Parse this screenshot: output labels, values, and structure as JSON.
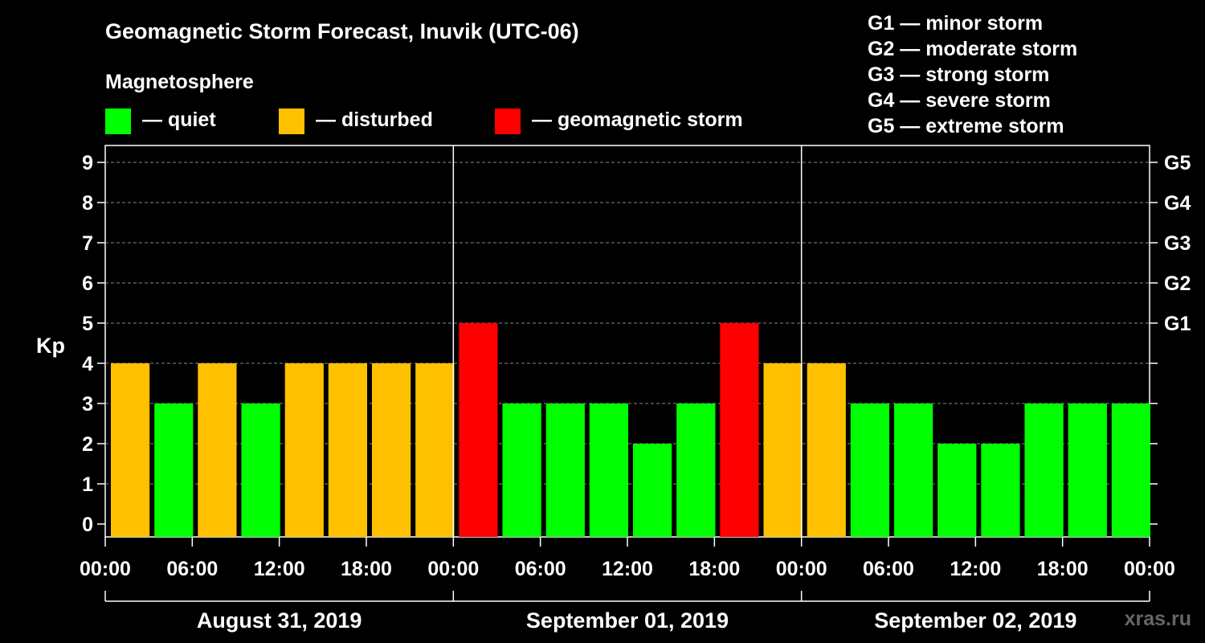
{
  "title": "Geomagnetic Storm Forecast, Inuvik (UTC-06)",
  "legend": {
    "heading": "Magnetosphere",
    "items": [
      {
        "label": "— quiet",
        "color": "#00ff00"
      },
      {
        "label": "— disturbed",
        "color": "#ffc000"
      },
      {
        "label": "— geomagnetic storm",
        "color": "#ff0000"
      }
    ]
  },
  "storm_scale": [
    "G1 — minor storm",
    "G2 — moderate storm",
    "G3 — strong storm",
    "G4 — severe storm",
    "G5 — extreme storm"
  ],
  "watermark": "xras.ru",
  "chart_data": {
    "type": "bar",
    "ylabel": "Kp",
    "ylim": [
      0,
      9
    ],
    "yticks": [
      "0",
      "1",
      "2",
      "3",
      "4",
      "5",
      "6",
      "7",
      "8",
      "9"
    ],
    "right_axis_labels": [
      {
        "kp": 5,
        "label": "G1"
      },
      {
        "kp": 6,
        "label": "G2"
      },
      {
        "kp": 7,
        "label": "G3"
      },
      {
        "kp": 8,
        "label": "G4"
      },
      {
        "kp": 9,
        "label": "G5"
      }
    ],
    "xtick_labels": [
      "00:00",
      "06:00",
      "12:00",
      "18:00",
      "00:00",
      "06:00",
      "12:00",
      "18:00",
      "00:00",
      "06:00",
      "12:00",
      "18:00",
      "00:00"
    ],
    "days": [
      "August 31, 2019",
      "September 01, 2019",
      "September 02, 2019"
    ],
    "grid": true,
    "colors": {
      "quiet": "#00ff00",
      "disturbed": "#ffc000",
      "storm": "#ff0000"
    },
    "values": [
      4,
      3,
      4,
      3,
      4,
      4,
      4,
      4,
      5,
      3,
      3,
      3,
      2,
      3,
      5,
      4,
      4,
      3,
      3,
      2,
      2,
      3,
      3,
      3
    ]
  }
}
